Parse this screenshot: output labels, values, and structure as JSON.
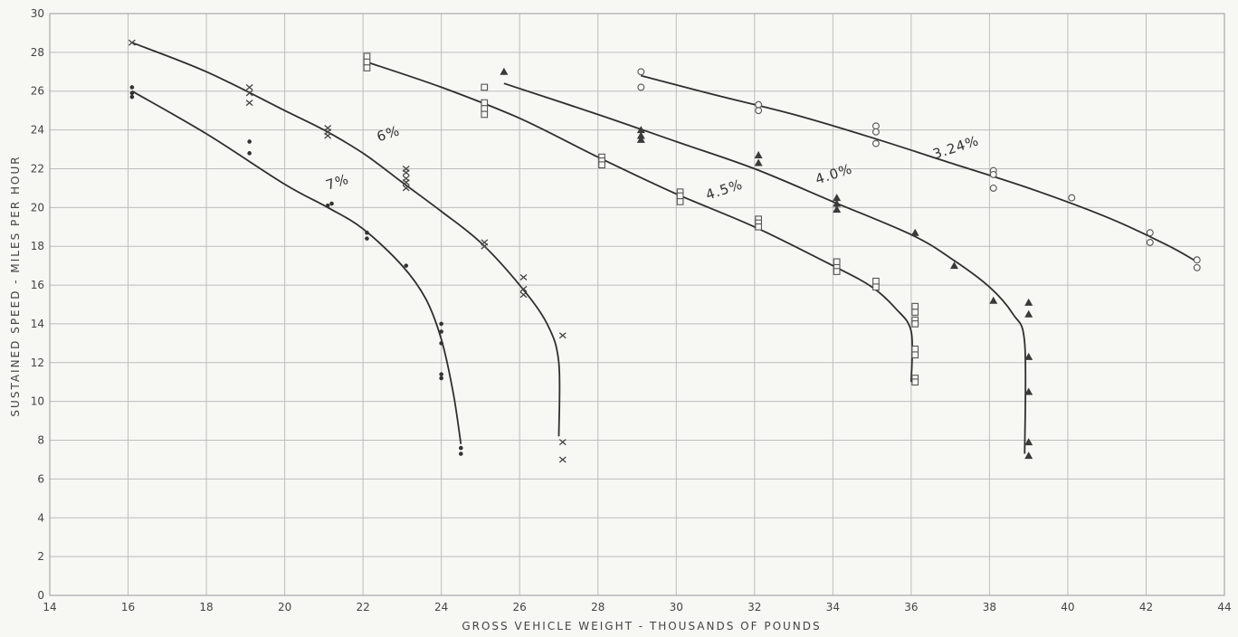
{
  "chart_data": {
    "type": "scatter",
    "xlabel": "GROSS VEHICLE WEIGHT - THOUSANDS OF POUNDS",
    "ylabel": "SUSTAINED SPEED - MILES PER HOUR",
    "xlim": [
      14,
      44
    ],
    "ylim": [
      0,
      30
    ],
    "xticks": [
      14,
      16,
      18,
      20,
      22,
      24,
      26,
      28,
      30,
      32,
      34,
      36,
      38,
      40,
      42,
      44
    ],
    "yticks": [
      0,
      2,
      4,
      6,
      8,
      10,
      12,
      14,
      16,
      18,
      20,
      22,
      24,
      26,
      28,
      30
    ],
    "grid": true,
    "series": [
      {
        "name": "7%",
        "marker": "dot",
        "curve": [
          [
            16.1,
            26.0
          ],
          [
            18,
            23.8
          ],
          [
            20,
            21.2
          ],
          [
            21.1,
            20.0
          ],
          [
            22,
            18.9
          ],
          [
            23,
            17.0
          ],
          [
            23.6,
            15.3
          ],
          [
            24.0,
            13.2
          ],
          [
            24.3,
            10.5
          ],
          [
            24.5,
            7.8
          ]
        ],
        "points": [
          [
            16.1,
            26.2
          ],
          [
            16.1,
            25.9
          ],
          [
            16.1,
            25.7
          ],
          [
            19.1,
            23.4
          ],
          [
            19.1,
            22.8
          ],
          [
            21.1,
            20.1
          ],
          [
            21.2,
            20.2
          ],
          [
            22.1,
            18.7
          ],
          [
            22.1,
            18.4
          ],
          [
            23.1,
            17.0
          ],
          [
            24.0,
            14.0
          ],
          [
            24.0,
            13.6
          ],
          [
            24.0,
            13.0
          ],
          [
            24.0,
            11.4
          ],
          [
            24.0,
            11.2
          ],
          [
            24.5,
            7.6
          ],
          [
            24.5,
            7.3
          ]
        ]
      },
      {
        "name": "6%",
        "marker": "x",
        "curve": [
          [
            16.1,
            28.5
          ],
          [
            18,
            27.0
          ],
          [
            20,
            25.0
          ],
          [
            21,
            24.0
          ],
          [
            22,
            22.8
          ],
          [
            23,
            21.3
          ],
          [
            24,
            19.8
          ],
          [
            25,
            18.2
          ],
          [
            26,
            16.0
          ],
          [
            26.7,
            14.0
          ],
          [
            27.0,
            12.0
          ],
          [
            27.0,
            8.2
          ]
        ],
        "points": [
          [
            16.1,
            28.5
          ],
          [
            19.1,
            26.2
          ],
          [
            19.1,
            25.9
          ],
          [
            19.1,
            25.4
          ],
          [
            21.1,
            24.1
          ],
          [
            21.1,
            23.9
          ],
          [
            21.1,
            23.7
          ],
          [
            23.1,
            22.0
          ],
          [
            23.1,
            21.8
          ],
          [
            23.1,
            21.5
          ],
          [
            23.1,
            21.3
          ],
          [
            23.1,
            21.0
          ],
          [
            25.1,
            18.2
          ],
          [
            25.1,
            18.0
          ],
          [
            26.1,
            16.4
          ],
          [
            26.1,
            15.8
          ],
          [
            26.1,
            15.5
          ],
          [
            27.1,
            13.4
          ],
          [
            27.1,
            7.9
          ],
          [
            27.1,
            7.0
          ]
        ]
      },
      {
        "name": "4.5%",
        "marker": "square",
        "curve": [
          [
            22.1,
            27.5
          ],
          [
            24,
            26.2
          ],
          [
            26,
            24.6
          ],
          [
            28,
            22.6
          ],
          [
            30,
            20.7
          ],
          [
            32,
            19.0
          ],
          [
            34,
            17.0
          ],
          [
            35,
            15.9
          ],
          [
            35.6,
            14.8
          ],
          [
            36.0,
            13.6
          ],
          [
            36.0,
            11.0
          ]
        ],
        "points": [
          [
            22.1,
            27.8
          ],
          [
            22.1,
            27.5
          ],
          [
            22.1,
            27.2
          ],
          [
            25.1,
            26.2
          ],
          [
            25.1,
            25.4
          ],
          [
            25.1,
            25.1
          ],
          [
            25.1,
            24.8
          ],
          [
            28.1,
            22.6
          ],
          [
            28.1,
            22.4
          ],
          [
            28.1,
            22.2
          ],
          [
            30.1,
            20.8
          ],
          [
            30.1,
            20.6
          ],
          [
            30.1,
            20.3
          ],
          [
            32.1,
            19.4
          ],
          [
            32.1,
            19.2
          ],
          [
            32.1,
            19.0
          ],
          [
            34.1,
            17.2
          ],
          [
            34.1,
            16.9
          ],
          [
            34.1,
            16.7
          ],
          [
            35.1,
            16.2
          ],
          [
            35.1,
            15.9
          ],
          [
            36.1,
            14.9
          ],
          [
            36.1,
            14.6
          ],
          [
            36.1,
            14.2
          ],
          [
            36.1,
            14.0
          ],
          [
            36.1,
            12.7
          ],
          [
            36.1,
            12.4
          ],
          [
            36.1,
            11.2
          ],
          [
            36.1,
            11.0
          ]
        ]
      },
      {
        "name": "4.0%",
        "marker": "triangle",
        "curve": [
          [
            25.6,
            26.4
          ],
          [
            28,
            24.8
          ],
          [
            30,
            23.4
          ],
          [
            32,
            22.0
          ],
          [
            34,
            20.3
          ],
          [
            36,
            18.6
          ],
          [
            37,
            17.4
          ],
          [
            38,
            15.9
          ],
          [
            38.6,
            14.5
          ],
          [
            38.9,
            13.0
          ],
          [
            38.9,
            7.3
          ]
        ],
        "points": [
          [
            25.6,
            27.0
          ],
          [
            29.1,
            24.0
          ],
          [
            29.1,
            23.7
          ],
          [
            29.1,
            23.5
          ],
          [
            32.1,
            22.7
          ],
          [
            32.1,
            22.3
          ],
          [
            34.1,
            20.5
          ],
          [
            34.1,
            20.2
          ],
          [
            34.1,
            19.9
          ],
          [
            36.1,
            18.7
          ],
          [
            37.1,
            17.0
          ],
          [
            38.1,
            15.2
          ],
          [
            39.0,
            15.1
          ],
          [
            39.0,
            14.5
          ],
          [
            39.0,
            12.3
          ],
          [
            39.0,
            10.5
          ],
          [
            39.0,
            7.9
          ],
          [
            39.0,
            7.2
          ]
        ]
      },
      {
        "name": "3.24%",
        "marker": "circle",
        "curve": [
          [
            29.1,
            26.8
          ],
          [
            31,
            25.8
          ],
          [
            33,
            24.8
          ],
          [
            35,
            23.6
          ],
          [
            37,
            22.3
          ],
          [
            39,
            21.0
          ],
          [
            41,
            19.5
          ],
          [
            42.5,
            18.1
          ],
          [
            43.3,
            17.2
          ]
        ],
        "points": [
          [
            29.1,
            27.0
          ],
          [
            29.1,
            26.2
          ],
          [
            32.1,
            25.3
          ],
          [
            32.1,
            25.0
          ],
          [
            35.1,
            24.2
          ],
          [
            35.1,
            23.9
          ],
          [
            35.1,
            23.3
          ],
          [
            38.1,
            21.9
          ],
          [
            38.1,
            21.7
          ],
          [
            38.1,
            21.0
          ],
          [
            40.1,
            20.5
          ],
          [
            42.1,
            18.7
          ],
          [
            42.1,
            18.2
          ],
          [
            43.3,
            17.3
          ],
          [
            43.3,
            16.9
          ]
        ]
      }
    ],
    "annotations": [
      {
        "text": "7%",
        "x": 21.1,
        "y": 20.9
      },
      {
        "text": "6%",
        "x": 22.4,
        "y": 23.4
      },
      {
        "text": "4.5%",
        "x": 30.8,
        "y": 20.4
      },
      {
        "text": "4.0%",
        "x": 33.6,
        "y": 21.2
      },
      {
        "text": "3.24%",
        "x": 36.6,
        "y": 22.5
      }
    ]
  }
}
